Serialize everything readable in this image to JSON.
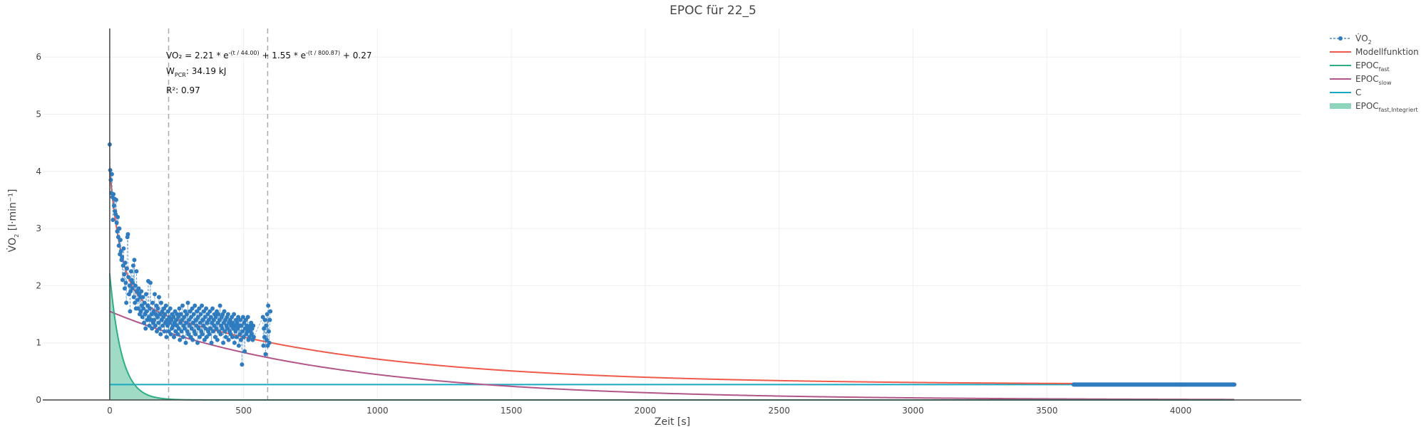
{
  "chart_data": {
    "type": "scatter",
    "title": "EPOC für 22_5",
    "xlabel": "Zeit [s]",
    "ylabel": {
      "pre": "V̇O",
      "sub": "2",
      "post": " [l·min⁻¹]"
    },
    "xlim": [
      -250,
      4450
    ],
    "ylim": [
      0,
      6.5
    ],
    "xticks": [
      0,
      500,
      1000,
      1500,
      2000,
      2500,
      3000,
      3500,
      4000
    ],
    "yticks": [
      0,
      1,
      2,
      3,
      4,
      5,
      6
    ],
    "grid": true,
    "legend_position": "top-right",
    "model": {
      "a_fast": 2.21,
      "tau_fast": 44.0,
      "a_slow": 1.55,
      "tau_slow": 800.87,
      "c": 0.27,
      "t_max": 4200
    },
    "vlines": [
      220,
      590
    ],
    "annotations": {
      "line1_main": "VO₂ = 2.21 * e",
      "line1_exp1": "-(t / 44.00)",
      "line1_mid": " + 1.55 * e",
      "line1_exp2": "-(t / 800.87)",
      "line1_end": " + 0.27",
      "line2_pre": "W",
      "line2_sub": "PCR",
      "line2_post": ": 34.19 kJ",
      "line3": "R²: 0.97"
    },
    "series": [
      {
        "name": {
          "pre": "V̇O",
          "sub": "2"
        },
        "color": "#2e7bbf",
        "style": "dashed-markers"
      },
      {
        "name": {
          "pre": "Modellfunktion",
          "sub": ""
        },
        "color": "#ef5a4a",
        "style": "line"
      },
      {
        "name": {
          "pre": "EPOC",
          "sub": "fast"
        },
        "color": "#2fae84",
        "style": "line"
      },
      {
        "name": {
          "pre": "EPOC",
          "sub": "slow"
        },
        "color": "#b2568a",
        "style": "line"
      },
      {
        "name": {
          "pre": "C",
          "sub": ""
        },
        "color": "#19a8c2",
        "style": "line"
      },
      {
        "name": {
          "pre": "EPOC",
          "sub": "fast,Integriert"
        },
        "color": "#8fd5bb",
        "style": "area"
      }
    ],
    "baseline_segment": {
      "x_start": 3600,
      "x_end": 4200,
      "y": 0.27,
      "color": "#2e7bbf"
    },
    "vo2_points": [
      [
        0,
        4.47
      ],
      [
        2,
        4.02
      ],
      [
        4,
        3.85
      ],
      [
        6,
        3.62
      ],
      [
        8,
        3.95
      ],
      [
        10,
        3.55
      ],
      [
        12,
        3.15
      ],
      [
        14,
        3.6
      ],
      [
        16,
        3.4
      ],
      [
        18,
        3.52
      ],
      [
        20,
        3.3
      ],
      [
        22,
        3.25
      ],
      [
        24,
        3.5
      ],
      [
        26,
        3.1
      ],
      [
        28,
        2.95
      ],
      [
        30,
        3.2
      ],
      [
        32,
        2.85
      ],
      [
        34,
        2.7
      ],
      [
        36,
        3.0
      ],
      [
        38,
        2.55
      ],
      [
        40,
        2.8
      ],
      [
        42,
        2.6
      ],
      [
        44,
        2.45
      ],
      [
        46,
        2.5
      ],
      [
        48,
        2.1
      ],
      [
        50,
        2.35
      ],
      [
        52,
        2.65
      ],
      [
        54,
        2.2
      ],
      [
        56,
        1.95
      ],
      [
        58,
        2.4
      ],
      [
        60,
        2.05
      ],
      [
        62,
        1.7
      ],
      [
        64,
        2.3
      ],
      [
        66,
        2.85
      ],
      [
        68,
        2.9
      ],
      [
        70,
        2.15
      ],
      [
        72,
        1.85
      ],
      [
        74,
        2.0
      ],
      [
        76,
        1.55
      ],
      [
        78,
        1.9
      ],
      [
        80,
        2.25
      ],
      [
        82,
        2.1
      ],
      [
        84,
        1.95
      ],
      [
        86,
        2.05
      ],
      [
        88,
        2.35
      ],
      [
        90,
        1.8
      ],
      [
        92,
        2.45
      ],
      [
        94,
        1.7
      ],
      [
        96,
        2.0
      ],
      [
        98,
        1.6
      ],
      [
        100,
        2.25
      ],
      [
        102,
        1.9
      ],
      [
        104,
        1.75
      ],
      [
        106,
        1.6
      ],
      [
        108,
        1.95
      ],
      [
        110,
        1.85
      ],
      [
        112,
        1.5
      ],
      [
        114,
        1.8
      ],
      [
        116,
        1.55
      ],
      [
        118,
        1.9
      ],
      [
        120,
        1.65
      ],
      [
        122,
        1.45
      ],
      [
        124,
        1.8
      ],
      [
        126,
        1.6
      ],
      [
        128,
        1.35
      ],
      [
        130,
        1.7
      ],
      [
        132,
        1.5
      ],
      [
        134,
        1.25
      ],
      [
        136,
        1.85
      ],
      [
        138,
        1.55
      ],
      [
        140,
        1.4
      ],
      [
        142,
        1.65
      ],
      [
        144,
        2.08
      ],
      [
        146,
        1.45
      ],
      [
        148,
        1.3
      ],
      [
        150,
        1.6
      ],
      [
        152,
        2.05
      ],
      [
        154,
        1.4
      ],
      [
        156,
        1.5
      ],
      [
        158,
        1.25
      ],
      [
        160,
        1.7
      ],
      [
        162,
        1.35
      ],
      [
        164,
        1.55
      ],
      [
        166,
        1.4
      ],
      [
        168,
        1.85
      ],
      [
        170,
        1.3
      ],
      [
        172,
        1.5
      ],
      [
        174,
        1.65
      ],
      [
        176,
        1.2
      ],
      [
        178,
        1.45
      ],
      [
        180,
        1.6
      ],
      [
        182,
        1.35
      ],
      [
        184,
        1.8
      ],
      [
        186,
        1.25
      ],
      [
        188,
        1.5
      ],
      [
        190,
        1.15
      ],
      [
        192,
        1.7
      ],
      [
        194,
        1.4
      ],
      [
        196,
        1.55
      ],
      [
        198,
        1.3
      ],
      [
        200,
        1.45
      ],
      [
        202,
        1.6
      ],
      [
        204,
        1.2
      ],
      [
        206,
        1.5
      ],
      [
        208,
        1.35
      ],
      [
        210,
        1.65
      ],
      [
        212,
        1.1
      ],
      [
        214,
        1.4
      ],
      [
        216,
        1.3
      ],
      [
        218,
        1.55
      ],
      [
        220,
        1.2
      ],
      [
        222,
        1.45
      ],
      [
        224,
        1.35
      ],
      [
        226,
        1.6
      ],
      [
        228,
        1.15
      ],
      [
        230,
        1.4
      ],
      [
        232,
        1.25
      ],
      [
        234,
        1.5
      ],
      [
        236,
        1.3
      ],
      [
        238,
        1.45
      ],
      [
        240,
        1.1
      ],
      [
        242,
        1.35
      ],
      [
        244,
        1.55
      ],
      [
        246,
        1.2
      ],
      [
        248,
        1.4
      ],
      [
        250,
        1.3
      ],
      [
        252,
        1.5
      ],
      [
        254,
        1.15
      ],
      [
        256,
        1.45
      ],
      [
        258,
        1.25
      ],
      [
        260,
        1.6
      ],
      [
        262,
        1.05
      ],
      [
        264,
        1.35
      ],
      [
        266,
        1.5
      ],
      [
        268,
        1.2
      ],
      [
        270,
        1.4
      ],
      [
        272,
        1.65
      ],
      [
        274,
        1.1
      ],
      [
        276,
        1.3
      ],
      [
        278,
        1.45
      ],
      [
        280,
        1.25
      ],
      [
        282,
        1.55
      ],
      [
        284,
        1.0
      ],
      [
        286,
        1.35
      ],
      [
        288,
        1.5
      ],
      [
        290,
        1.2
      ],
      [
        292,
        1.7
      ],
      [
        294,
        1.15
      ],
      [
        296,
        1.4
      ],
      [
        298,
        1.3
      ],
      [
        300,
        1.55
      ],
      [
        302,
        1.1
      ],
      [
        304,
        1.45
      ],
      [
        306,
        1.25
      ],
      [
        308,
        1.6
      ],
      [
        310,
        1.05
      ],
      [
        312,
        1.35
      ],
      [
        314,
        1.5
      ],
      [
        316,
        1.2
      ],
      [
        318,
        1.65
      ],
      [
        320,
        1.15
      ],
      [
        322,
        1.4
      ],
      [
        324,
        1.3
      ],
      [
        326,
        1.55
      ],
      [
        328,
        1.0
      ],
      [
        330,
        1.45
      ],
      [
        332,
        1.25
      ],
      [
        334,
        1.6
      ],
      [
        336,
        1.1
      ],
      [
        338,
        1.35
      ],
      [
        340,
        1.5
      ],
      [
        342,
        1.2
      ],
      [
        344,
        1.65
      ],
      [
        346,
        1.15
      ],
      [
        348,
        1.4
      ],
      [
        350,
        1.3
      ],
      [
        352,
        1.55
      ],
      [
        354,
        1.05
      ],
      [
        356,
        1.45
      ],
      [
        358,
        1.25
      ],
      [
        360,
        1.6
      ],
      [
        362,
        1.1
      ],
      [
        364,
        1.35
      ],
      [
        366,
        1.5
      ],
      [
        368,
        1.2
      ],
      [
        370,
        1.4
      ],
      [
        372,
        1.15
      ],
      [
        374,
        1.55
      ],
      [
        376,
        1.25
      ],
      [
        378,
        1.45
      ],
      [
        380,
        1.0
      ],
      [
        382,
        1.35
      ],
      [
        384,
        1.6
      ],
      [
        386,
        1.2
      ],
      [
        388,
        1.4
      ],
      [
        390,
        1.3
      ],
      [
        392,
        1.5
      ],
      [
        394,
        1.1
      ],
      [
        396,
        1.45
      ],
      [
        398,
        1.25
      ],
      [
        400,
        1.55
      ],
      [
        402,
        1.05
      ],
      [
        404,
        1.35
      ],
      [
        406,
        1.5
      ],
      [
        408,
        1.2
      ],
      [
        410,
        1.4
      ],
      [
        412,
        1.65
      ],
      [
        414,
        1.15
      ],
      [
        416,
        1.3
      ],
      [
        418,
        1.45
      ],
      [
        420,
        1.25
      ],
      [
        422,
        1.5
      ],
      [
        424,
        1.0
      ],
      [
        426,
        1.35
      ],
      [
        428,
        1.55
      ],
      [
        430,
        1.2
      ],
      [
        432,
        1.4
      ],
      [
        434,
        1.1
      ],
      [
        436,
        1.3
      ],
      [
        438,
        1.45
      ],
      [
        440,
        1.25
      ],
      [
        442,
        1.5
      ],
      [
        444,
        1.05
      ],
      [
        446,
        1.35
      ],
      [
        448,
        1.2
      ],
      [
        450,
        1.4
      ],
      [
        452,
        1.15
      ],
      [
        454,
        1.3
      ],
      [
        456,
        1.45
      ],
      [
        458,
        1.1
      ],
      [
        460,
        1.35
      ],
      [
        462,
        1.25
      ],
      [
        464,
        1.5
      ],
      [
        466,
        1.0
      ],
      [
        468,
        1.3
      ],
      [
        470,
        1.2
      ],
      [
        472,
        1.4
      ],
      [
        474,
        1.1
      ],
      [
        476,
        1.35
      ],
      [
        478,
        1.25
      ],
      [
        480,
        1.45
      ],
      [
        482,
        0.95
      ],
      [
        484,
        1.3
      ],
      [
        486,
        1.15
      ],
      [
        488,
        1.4
      ],
      [
        490,
        1.05
      ],
      [
        492,
        1.3
      ],
      [
        494,
        0.62
      ],
      [
        496,
        1.2
      ],
      [
        498,
        1.45
      ],
      [
        500,
        1.1
      ],
      [
        502,
        1.35
      ],
      [
        504,
        0.85
      ],
      [
        506,
        1.25
      ],
      [
        508,
        1.4
      ],
      [
        510,
        1.15
      ],
      [
        512,
        1.3
      ],
      [
        514,
        1.2
      ],
      [
        516,
        1.45
      ],
      [
        518,
        1.05
      ],
      [
        520,
        1.25
      ],
      [
        522,
        1.1
      ],
      [
        524,
        1.3
      ],
      [
        526,
        1.2
      ],
      [
        528,
        1.35
      ],
      [
        530,
        1.15
      ],
      [
        532,
        1.25
      ],
      [
        534,
        1.05
      ],
      [
        536,
        1.3
      ],
      [
        538,
        1.1
      ],
      [
        572,
        1.45
      ],
      [
        574,
        0.95
      ],
      [
        576,
        1.25
      ],
      [
        578,
        1.1
      ],
      [
        580,
        1.4
      ],
      [
        582,
        0.8
      ],
      [
        584,
        1.3
      ],
      [
        586,
        1.05
      ],
      [
        588,
        1.5
      ],
      [
        590,
        0.95
      ],
      [
        592,
        1.65
      ],
      [
        594,
        1.2
      ],
      [
        596,
        1.0
      ],
      [
        598,
        1.4
      ],
      [
        600,
        1.55
      ]
    ]
  }
}
